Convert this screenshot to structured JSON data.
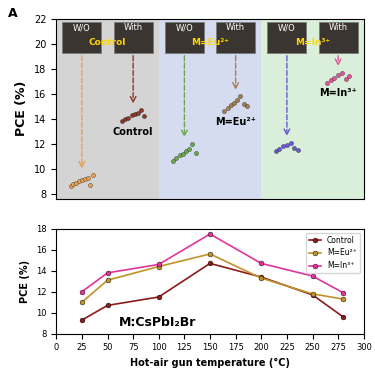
{
  "chart_data": [
    {
      "type": "scatter",
      "panel": "A",
      "ylabel": "PCE (%)",
      "ylim": [
        7.6,
        22
      ],
      "yticks": [
        8,
        10,
        12,
        14,
        16,
        18,
        20,
        22
      ],
      "tick_labels": "y",
      "groups": [
        {
          "name": "Control",
          "color": "#d4d4d4",
          "label_color": "#ffd700",
          "series": [
            {
              "name": "W/O",
              "color": "#e8a050",
              "values": [
                8.6,
                8.8,
                8.9,
                9.0,
                9.1,
                9.2,
                9.3,
                8.7,
                9.5
              ]
            },
            {
              "name": "With",
              "color": "#8b3a2a",
              "values": [
                13.8,
                14.0,
                14.1,
                14.3,
                14.4,
                14.5,
                14.7,
                14.2
              ]
            }
          ]
        },
        {
          "name": "M=Eu²⁺",
          "color": "#d6dcef",
          "label_color": "#ffd700",
          "series": [
            {
              "name": "W/O",
              "color": "#6aa84f",
              "values": [
                10.6,
                10.9,
                11.1,
                11.2,
                11.4,
                11.6,
                12.0,
                11.3
              ]
            },
            {
              "name": "With",
              "color": "#a67c52",
              "values": [
                14.6,
                14.9,
                15.1,
                15.3,
                15.5,
                15.8,
                15.2,
                15.0
              ]
            }
          ]
        },
        {
          "name": "M=In³⁺",
          "color": "#d9efd9",
          "label_color": "#ffd700",
          "series": [
            {
              "name": "W/O",
              "color": "#6a5acd",
              "values": [
                11.4,
                11.6,
                11.8,
                11.9,
                12.1,
                11.7,
                11.5
              ]
            },
            {
              "name": "With",
              "color": "#e0559a",
              "values": [
                16.9,
                17.1,
                17.3,
                17.5,
                17.7,
                17.2,
                17.4
              ]
            }
          ]
        }
      ]
    },
    {
      "type": "line",
      "xlabel": "Hot-air gun temperature (°C)",
      "ylabel": "PCE (%)",
      "xlim": [
        0,
        300
      ],
      "xticks": [
        0,
        25,
        50,
        75,
        100,
        125,
        150,
        175,
        200,
        225,
        250,
        275,
        300
      ],
      "ylim": [
        8,
        18
      ],
      "yticks": [
        8,
        10,
        12,
        14,
        16,
        18
      ],
      "legend": "upper right",
      "marker": "o",
      "annotation": "M:CsPbI₂Br",
      "x": [
        25,
        50,
        100,
        150,
        200,
        250,
        280
      ],
      "series": [
        {
          "name": "Control",
          "color": "#8b1a1a",
          "values": [
            9.3,
            10.7,
            11.5,
            14.7,
            13.4,
            11.7,
            9.6
          ]
        },
        {
          "name": "M=Eu²⁺",
          "color": "#c0922a",
          "values": [
            11.0,
            13.1,
            14.4,
            15.6,
            13.3,
            11.8,
            11.3
          ]
        },
        {
          "name": "M=In³⁺",
          "color": "#e0359a",
          "values": [
            12.0,
            13.8,
            14.6,
            17.5,
            14.7,
            13.5,
            11.9
          ]
        }
      ]
    }
  ]
}
